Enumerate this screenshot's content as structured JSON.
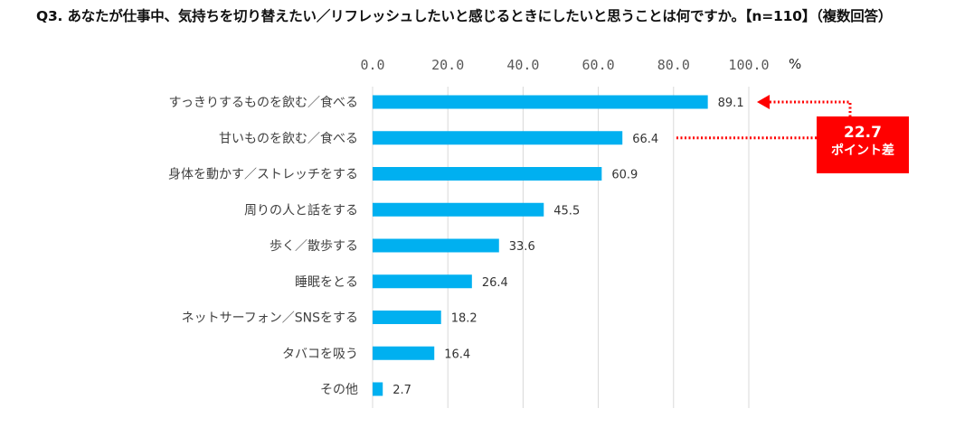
{
  "title": "Q3. あなたが仕事中、気持ちを切り替えたい／リフレッシュしたいと感じるときにしたいと思うことは何ですか。【n=110】（複数回答）",
  "chart_data": {
    "type": "bar",
    "orientation": "horizontal",
    "title": "Q3. あなたが仕事中、気持ちを切り替えたい／リフレッシュしたいと感じるときにしたいと思うことは何ですか。【n=110】（複数回答）",
    "xlabel": "%",
    "ylabel": "",
    "xlim": [
      0,
      100
    ],
    "xticks": [
      "0.0",
      "20.0",
      "40.0",
      "60.0",
      "80.0",
      "100.0"
    ],
    "tick_values": [
      0,
      20,
      40,
      60,
      80,
      100
    ],
    "unit_label": "%",
    "grid": true,
    "bar_color": "#00b0f0",
    "categories": [
      "すっきりするものを飲む／食べる",
      "甘いものを飲む／食べる",
      "身体を動かす／ストレッチをする",
      "周りの人と話をする",
      "歩く／散歩する",
      "睡眠をとる",
      "ネットサーフォン／SNSをする",
      "タバコを吸う",
      "その他"
    ],
    "values": [
      89.1,
      66.4,
      60.9,
      45.5,
      33.6,
      26.4,
      18.2,
      16.4,
      2.7
    ],
    "value_labels": [
      "89.1",
      "66.4",
      "60.9",
      "45.5",
      "33.6",
      "26.4",
      "18.2",
      "16.4",
      "2.7"
    ],
    "annotation": {
      "value_text": "22.7",
      "label_text": "ポイント差",
      "from_category_index": 1,
      "to_category_index": 0,
      "color": "#ff0000"
    }
  }
}
